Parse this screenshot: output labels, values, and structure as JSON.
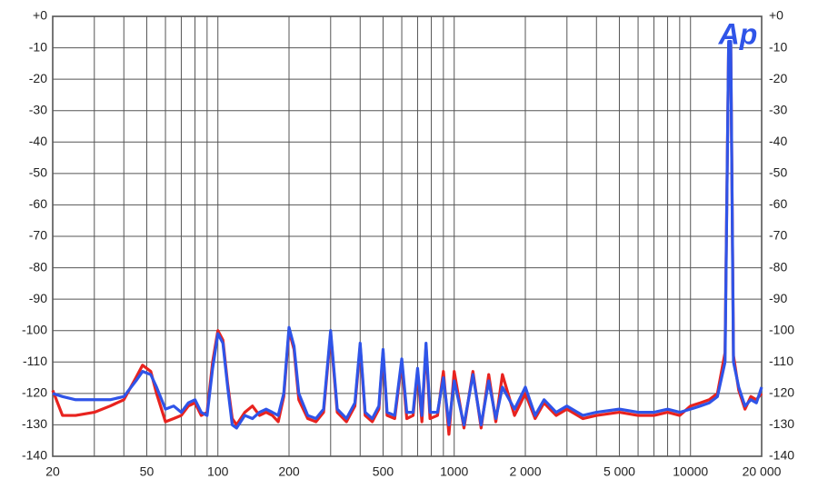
{
  "chart_data": {
    "type": "line",
    "logo": "Ap",
    "x": [
      20,
      22,
      25,
      30,
      35,
      40,
      45,
      48,
      52,
      55,
      60,
      65,
      70,
      75,
      80,
      85,
      90,
      95,
      100,
      105,
      110,
      115,
      120,
      130,
      140,
      150,
      160,
      170,
      180,
      190,
      200,
      210,
      220,
      240,
      260,
      280,
      300,
      320,
      350,
      380,
      400,
      420,
      450,
      480,
      500,
      520,
      560,
      600,
      630,
      670,
      700,
      730,
      760,
      790,
      850,
      900,
      950,
      1000,
      1100,
      1200,
      1300,
      1400,
      1500,
      1600,
      1800,
      2000,
      2200,
      2400,
      2700,
      3000,
      3500,
      4000,
      5000,
      6000,
      7000,
      8000,
      9000,
      10000,
      11000,
      12000,
      13000,
      14000,
      14500,
      14800,
      15200,
      16000,
      17000,
      18000,
      19000,
      20000
    ],
    "series": [
      {
        "color": "#e8231f",
        "values": [
          -119,
          -127,
          -127,
          -126,
          -124,
          -122,
          -115,
          -111,
          -113,
          -120,
          -129,
          -128,
          -127,
          -124,
          -123,
          -127,
          -126,
          -110,
          -100,
          -103,
          -117,
          -128,
          -130,
          -126,
          -124,
          -127,
          -126,
          -127,
          -129,
          -121,
          -100,
          -106,
          -122,
          -128,
          -129,
          -126,
          -101,
          -126,
          -129,
          -124,
          -105,
          -127,
          -129,
          -125,
          -107,
          -127,
          -128,
          -110,
          -128,
          -127,
          -113,
          -129,
          -105,
          -128,
          -127,
          -113,
          -133,
          -113,
          -131,
          -113,
          -131,
          -114,
          -129,
          -114,
          -127,
          -120,
          -128,
          -123,
          -127,
          -125,
          -128,
          -127,
          -126,
          -127,
          -127,
          -126,
          -127,
          -124,
          -123,
          -122,
          -120,
          -107,
          -9,
          -9,
          -108,
          -119,
          -125,
          -121,
          -122,
          -120
        ]
      },
      {
        "color": "#2f54e8",
        "values": [
          -120,
          -121,
          -122,
          -122,
          -122,
          -121,
          -116,
          -113,
          -114,
          -118,
          -125,
          -124,
          -126,
          -123,
          -122,
          -126,
          -127,
          -112,
          -101,
          -104,
          -118,
          -130,
          -131,
          -127,
          -128,
          -126,
          -125,
          -126,
          -127,
          -120,
          -99,
          -105,
          -120,
          -127,
          -128,
          -125,
          -100,
          -125,
          -128,
          -123,
          -104,
          -126,
          -128,
          -124,
          -106,
          -126,
          -127,
          -109,
          -126,
          -126,
          -112,
          -127,
          -104,
          -126,
          -126,
          -115,
          -130,
          -116,
          -130,
          -114,
          -130,
          -116,
          -128,
          -118,
          -125,
          -118,
          -127,
          -122,
          -126,
          -124,
          -127,
          -126,
          -125,
          -126,
          -126,
          -125,
          -126,
          -125,
          -124,
          -123,
          -121,
          -110,
          -8,
          -8,
          -110,
          -118,
          -124,
          -122,
          -123,
          -118
        ]
      }
    ],
    "xlog": true,
    "xlim": [
      20,
      20000
    ],
    "xticks": [
      20,
      50,
      100,
      200,
      500,
      1000,
      {
        "value": 2000,
        "label": "2 000"
      },
      {
        "value": 5000,
        "label": "5 000"
      },
      10000,
      {
        "value": 20000,
        "label": "20 000"
      }
    ],
    "xgrid": [
      30,
      40,
      60,
      70,
      80,
      90,
      300,
      400,
      600,
      700,
      800,
      900,
      3000,
      4000,
      6000,
      7000,
      8000,
      9000
    ],
    "ylim": [
      -140,
      0
    ],
    "yticks": [
      {
        "value": 0,
        "label": "+0"
      },
      -10,
      -20,
      -30,
      -40,
      -50,
      -60,
      -70,
      -80,
      -90,
      -100,
      -110,
      -120,
      -130,
      -140
    ],
    "grid": true
  }
}
